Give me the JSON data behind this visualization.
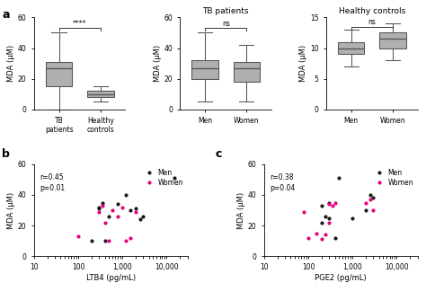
{
  "fig_width": 4.74,
  "fig_height": 3.24,
  "dpi": 100,
  "panel_a1": {
    "categories": [
      "TB\npatients",
      "Healthy\ncontrols"
    ],
    "ylabel": "MDA (μM)",
    "ylim": [
      0,
      60
    ],
    "yticks": [
      0,
      20,
      40,
      60
    ],
    "boxes": [
      {
        "med": 27,
        "q1": 15,
        "q3": 31,
        "whislo": 0,
        "whishi": 50
      },
      {
        "med": 10,
        "q1": 8,
        "q3": 12,
        "whislo": 5,
        "whishi": 15
      }
    ],
    "sig_text": "****",
    "sig_y": 53
  },
  "panel_a2": {
    "title": "TB patients",
    "categories": [
      "Men",
      "Women"
    ],
    "ylabel": "MDA (μM)",
    "ylim": [
      0,
      60
    ],
    "yticks": [
      0,
      20,
      40,
      60
    ],
    "boxes": [
      {
        "med": 27,
        "q1": 20,
        "q3": 32,
        "whislo": 5,
        "whishi": 50
      },
      {
        "med": 27,
        "q1": 18,
        "q3": 31,
        "whislo": 5,
        "whishi": 42
      }
    ],
    "sig_text": "ns",
    "sig_y": 53
  },
  "panel_a3": {
    "title": "Healthy controls",
    "categories": [
      "Men",
      "Women"
    ],
    "ylabel": "MDA (μM)",
    "ylim": [
      0,
      15
    ],
    "yticks": [
      0,
      5,
      10,
      15
    ],
    "boxes": [
      {
        "med": 10,
        "q1": 9,
        "q3": 11,
        "whislo": 7,
        "whishi": 13
      },
      {
        "med": 11.5,
        "q1": 10,
        "q3": 12.5,
        "whislo": 8,
        "whishi": 14
      }
    ],
    "sig_text": "ns",
    "sig_y": 13.5
  },
  "panel_b": {
    "xlabel": "LTB4 (pg/mL)",
    "ylabel": "MDA (μM)",
    "ylim": [
      0,
      60
    ],
    "yticks": [
      0,
      20,
      40,
      60
    ],
    "xlim_log": [
      10,
      30000
    ],
    "xticks_log": [
      10,
      100,
      1000,
      10000
    ],
    "xticklabels": [
      "10",
      "100",
      "1,000",
      "10,000"
    ],
    "annotation": "r=0.45\np=0.01",
    "men_x": [
      200,
      300,
      350,
      400,
      300,
      500,
      800,
      1200,
      1500,
      2000,
      2500,
      3000,
      15000
    ],
    "men_y": [
      10,
      32,
      35,
      10,
      31,
      26,
      34,
      40,
      30,
      31,
      24,
      26,
      51
    ],
    "women_x": [
      100,
      300,
      350,
      400,
      500,
      600,
      800,
      1000,
      1200,
      1500,
      2000
    ],
    "women_y": [
      13,
      29,
      33,
      22,
      10,
      30,
      26,
      32,
      10,
      12,
      29
    ],
    "men_color": "#1a1a1a",
    "women_color": "#e8007a"
  },
  "panel_c": {
    "xlabel": "PGE2 (pg/mL)",
    "ylabel": "MDA (μM)",
    "ylim": [
      0,
      60
    ],
    "yticks": [
      0,
      20,
      40,
      60
    ],
    "xlim_log": [
      10,
      30000
    ],
    "xticks_log": [
      10,
      100,
      1000,
      10000
    ],
    "xticklabels": [
      "10",
      "100",
      "1,000",
      "10,000"
    ],
    "annotation": "r=0.38\np=0.04",
    "men_x": [
      400,
      200,
      300,
      250,
      200,
      300,
      500,
      1000,
      2000,
      2500,
      3000
    ],
    "men_y": [
      12,
      22,
      25,
      26,
      33,
      35,
      51,
      25,
      30,
      40,
      38
    ],
    "women_x": [
      80,
      100,
      150,
      200,
      250,
      300,
      350,
      300,
      400,
      2000,
      2500,
      3000
    ],
    "women_y": [
      29,
      12,
      15,
      11,
      14,
      34,
      33,
      22,
      35,
      35,
      37,
      30
    ],
    "men_color": "#1a1a1a",
    "women_color": "#e8007a"
  }
}
